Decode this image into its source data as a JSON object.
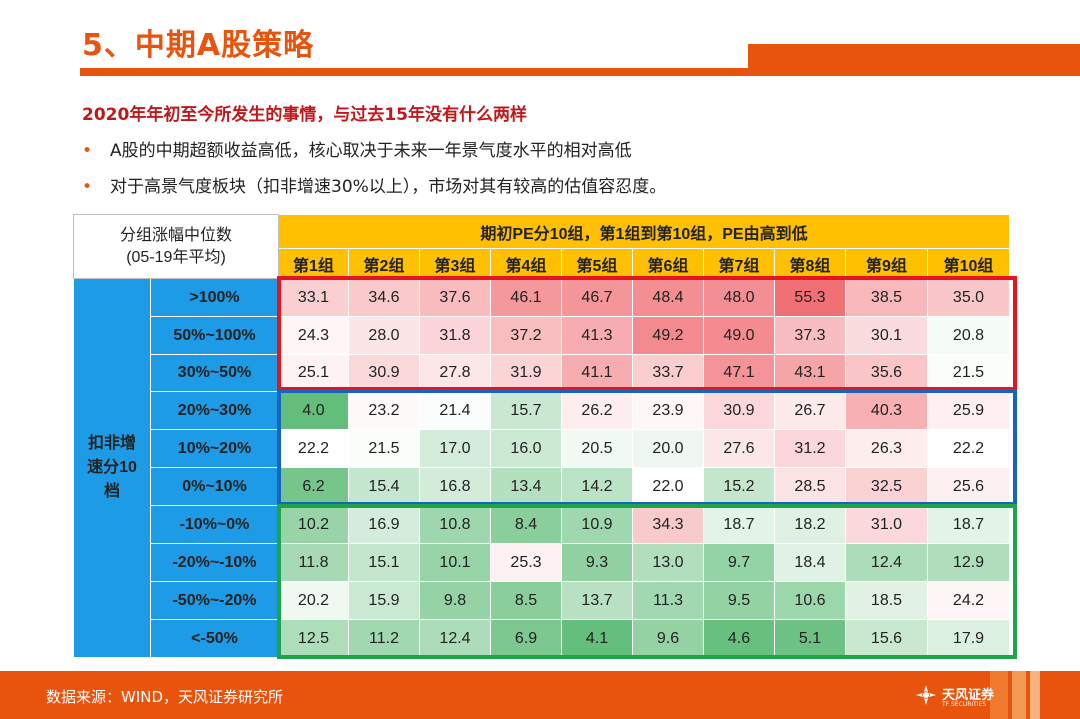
{
  "title": "5、中期A股策略",
  "subtitle": "2020年年初至今所发生的事情，与过去15年没有什么两样",
  "bullets": [
    "A股的中期超额收益高低，核心取决于未来一年景气度水平的相对高低",
    "对于高景气度板块（扣非增速30%以上），市场对其有较高的估值容忍度。"
  ],
  "table": {
    "corner_line1": "分组涨幅中位数",
    "corner_line2": "(05-19年平均)",
    "top_header": "期初PE分10组，第1组到第10组，PE由高到低",
    "groups": [
      "第1组",
      "第2组",
      "第3组",
      "第4组",
      "第5组",
      "第6组",
      "第7组",
      "第8组",
      "第9组",
      "第10组"
    ],
    "side_label_line1": "扣非增",
    "side_label_line2": "速分10",
    "side_label_line3": "档",
    "row_labels": [
      ">100%",
      "50%~100%",
      "30%~50%",
      "20%~30%",
      "10%~20%",
      "0%~10%",
      "-10%~0%",
      "-20%~-10%",
      "-50%~-20%",
      "<-50%"
    ],
    "values": [
      [
        33.1,
        34.6,
        37.6,
        46.1,
        46.7,
        48.4,
        48.0,
        55.3,
        38.5,
        35.0
      ],
      [
        24.3,
        28.0,
        31.8,
        37.2,
        41.3,
        49.2,
        49.0,
        37.3,
        30.1,
        20.8
      ],
      [
        25.1,
        30.9,
        27.8,
        31.9,
        41.1,
        33.7,
        47.1,
        43.1,
        35.6,
        21.5
      ],
      [
        4.0,
        23.2,
        21.4,
        15.7,
        26.2,
        23.9,
        30.9,
        26.7,
        40.3,
        25.9
      ],
      [
        22.2,
        21.5,
        17.0,
        16.0,
        20.5,
        20.0,
        27.6,
        31.2,
        26.3,
        22.2
      ],
      [
        6.2,
        15.4,
        16.8,
        13.4,
        14.2,
        22.0,
        15.2,
        28.5,
        32.5,
        25.6
      ],
      [
        10.2,
        16.9,
        10.8,
        8.4,
        10.9,
        34.3,
        18.7,
        18.2,
        31.0,
        18.7
      ],
      [
        11.8,
        15.1,
        10.1,
        25.3,
        9.3,
        13.0,
        9.7,
        18.4,
        12.4,
        12.9
      ],
      [
        20.2,
        15.9,
        9.8,
        8.5,
        13.7,
        11.3,
        9.5,
        10.6,
        18.5,
        24.2
      ],
      [
        12.5,
        11.2,
        12.4,
        6.9,
        4.1,
        9.6,
        4.6,
        5.1,
        15.6,
        17.9
      ]
    ]
  },
  "footer": {
    "source": "数据来源：WIND，天风证券研究所",
    "logo_name": "天风证券",
    "logo_en": "TF SECURITIES"
  },
  "colors": {
    "accent": "#E8540E",
    "header_yellow": "#FFC000",
    "side_blue": "#1E9BE6",
    "box_red": "#E8141B",
    "box_blue": "#1565C0",
    "box_green": "#1DA34A"
  }
}
